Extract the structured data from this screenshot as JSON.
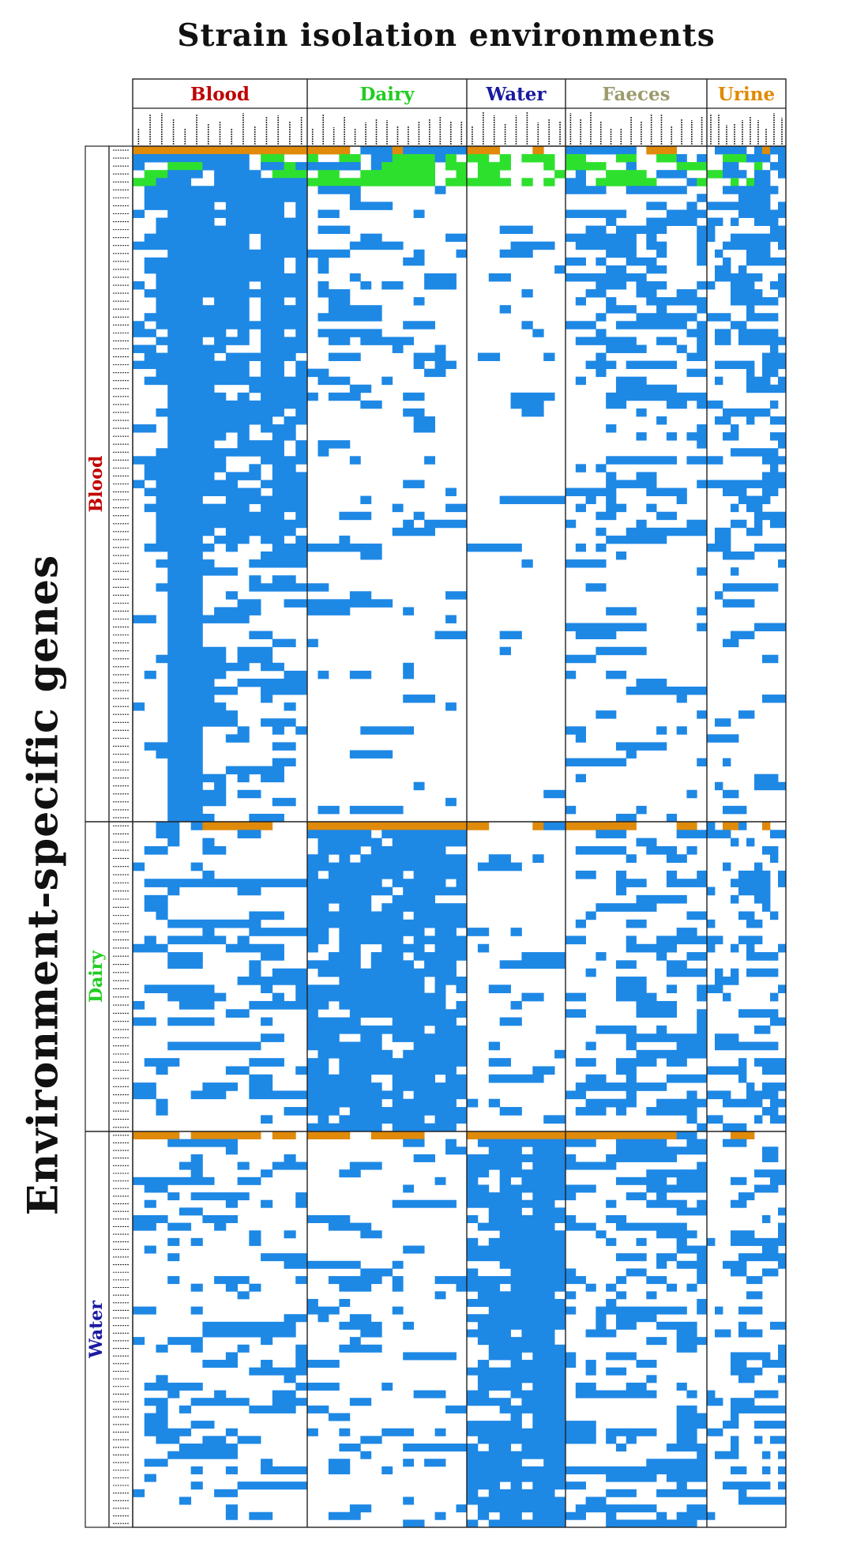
{
  "chart_data": {
    "type": "heatmap",
    "title": "Strain isolation environments",
    "ylabel": "Environment-specific genes",
    "column_groups": [
      {
        "name": "Blood",
        "color": "#c00000",
        "strains": 15
      },
      {
        "name": "Dairy",
        "color": "#22cc22",
        "strains": 15
      },
      {
        "name": "Water",
        "color": "#1a1aa0",
        "strains": 9
      },
      {
        "name": "Faeces",
        "color": "#9b9b6e",
        "strains": 14
      },
      {
        "name": "Urine",
        "color": "#e08a00",
        "strains": 10
      }
    ],
    "row_groups": [
      {
        "name": "Blood",
        "color": "#c00000",
        "genes": 85
      },
      {
        "name": "Dairy",
        "color": "#22cc22",
        "genes": 38
      },
      {
        "name": "Water",
        "color": "#1a1aa0",
        "genes": 52
      }
    ],
    "cell_colors": {
      "present": "#1e88e5",
      "environment_marker": "#e08a0a",
      "shared_marker": "#2ee02e",
      "absent": "#ffffff"
    }
  }
}
